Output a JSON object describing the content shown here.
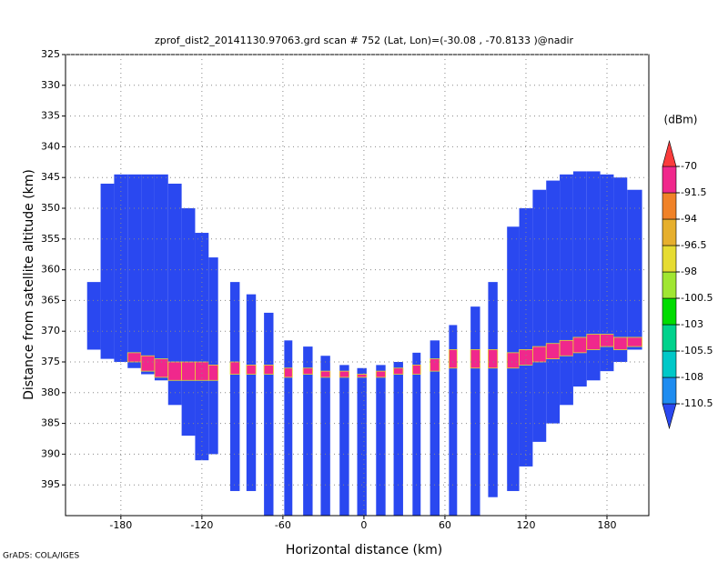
{
  "chart_data": {
    "type": "swath",
    "title": "zprof_dist2_20141130.97063.grd  scan # 752  (Lat, Lon)=(-30.08 , -70.8133 )@nadir",
    "x_label": "Horizontal distance (km)",
    "y_label": "Distance from satellite altitude (km)",
    "colorbar_label": "(dBm)",
    "footer": "GrADS: COLA/IGES",
    "xlim": [
      -221,
      211
    ],
    "ylim": [
      325,
      400
    ],
    "y_inverted": true,
    "xticks": [
      -180,
      -120,
      -60,
      0,
      60,
      120,
      180
    ],
    "yticks": [
      325,
      330,
      335,
      340,
      345,
      350,
      355,
      360,
      365,
      370,
      375,
      380,
      385,
      390,
      395
    ],
    "grid": true,
    "levels": [
      -110.5,
      -108,
      -105.5,
      -103,
      -100.5,
      -98,
      -96.5,
      -94,
      -91.5,
      -70
    ],
    "colors": [
      "#2a48f0",
      "#1e8cf0",
      "#00c8c8",
      "#00d28c",
      "#00dc00",
      "#a0e632",
      "#e6dc32",
      "#e6af2d",
      "#f08228",
      "#f0288c",
      "#fa3c3c"
    ],
    "columns": {
      "x0": [
        -205,
        -195,
        -185,
        -175,
        -165,
        -155,
        -145,
        -135,
        -125,
        -115,
        -99,
        -87,
        -74,
        -59,
        -45,
        -32,
        -18,
        -5,
        9,
        22,
        36,
        49,
        63,
        79,
        92,
        106,
        115,
        125,
        135,
        145,
        155,
        165,
        175,
        185,
        195
      ],
      "x1": [
        -195,
        -185,
        -175,
        -165,
        -155,
        -145,
        -135,
        -125,
        -115,
        -108,
        -92,
        -80,
        -67,
        -53,
        -38,
        -25,
        -11,
        2,
        16,
        29,
        42,
        56,
        69,
        86,
        99,
        115,
        125,
        135,
        145,
        155,
        165,
        175,
        185,
        195,
        206
      ],
      "top": [
        362,
        346,
        344.5,
        344.5,
        344.5,
        344.5,
        346,
        350,
        354,
        358,
        362,
        364,
        367,
        371.5,
        372.5,
        374,
        375.5,
        376,
        375.5,
        375,
        373.5,
        371.5,
        369,
        366,
        362,
        353,
        350,
        347,
        345.5,
        344.5,
        344,
        344,
        344.5,
        345,
        347
      ],
      "bottom": [
        373,
        374.5,
        375,
        376,
        377,
        378,
        382,
        387,
        391,
        390,
        396,
        396,
        400,
        400,
        400,
        400,
        400,
        400,
        400,
        400,
        400,
        400,
        400,
        400,
        397,
        396,
        392,
        388,
        385,
        382,
        379,
        378,
        376.5,
        375,
        373
      ],
      "band_top": [
        null,
        null,
        null,
        373.5,
        374,
        374.5,
        375,
        375,
        375,
        375.5,
        375,
        375.5,
        375.5,
        376,
        376,
        376.5,
        376.5,
        377,
        376.5,
        376,
        375.5,
        374.5,
        373,
        373,
        373,
        373.5,
        373,
        372.5,
        372,
        371.5,
        371,
        370.5,
        370.5,
        371,
        371
      ],
      "band_bottom": [
        null,
        null,
        null,
        375,
        376.5,
        377.5,
        378,
        378,
        378,
        378,
        377,
        377,
        377,
        377.5,
        377,
        377.5,
        377.5,
        377.5,
        377.5,
        377,
        377,
        376.5,
        376,
        376,
        376,
        376,
        375.5,
        375,
        374.5,
        374,
        373.5,
        373,
        372.5,
        373,
        372.5
      ]
    }
  }
}
